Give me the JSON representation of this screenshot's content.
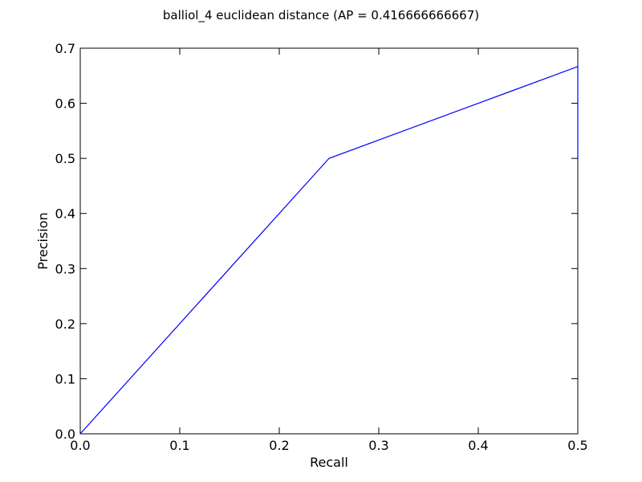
{
  "chart_data": {
    "type": "line",
    "title": "balliol_4 euclidean distance  (AP = 0.416666666667)",
    "xlabel": "Recall",
    "ylabel": "Precision",
    "xlim": [
      0.0,
      0.5
    ],
    "ylim": [
      0.0,
      0.7
    ],
    "xticks": [
      "0.0",
      "0.1",
      "0.2",
      "0.3",
      "0.4",
      "0.5"
    ],
    "yticks": [
      "0.0",
      "0.1",
      "0.2",
      "0.3",
      "0.4",
      "0.5",
      "0.6",
      "0.7"
    ],
    "grid": false,
    "series": [
      {
        "color": "#0000ff",
        "x": [
          0.0,
          0.25,
          0.5,
          0.5
        ],
        "y": [
          0.0,
          0.5,
          0.6667,
          0.5
        ]
      }
    ]
  }
}
